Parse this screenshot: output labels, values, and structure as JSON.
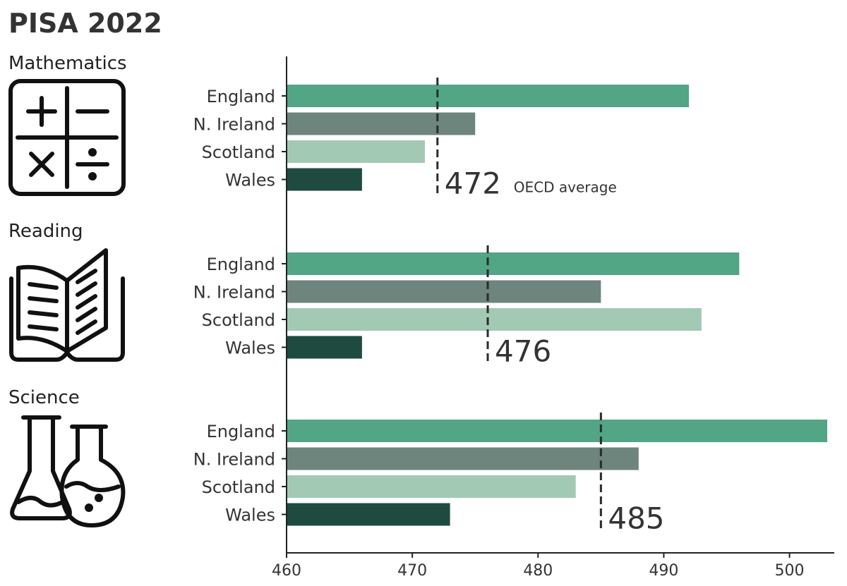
{
  "title": "PISA 2022",
  "chart_data": {
    "type": "bar",
    "orientation": "horizontal",
    "xlim": [
      460,
      503
    ],
    "xticks": [
      460,
      470,
      480,
      490,
      500
    ],
    "categories": [
      "England",
      "N. Ireland",
      "Scotland",
      "Wales"
    ],
    "colors": [
      "#52a585",
      "#6d857c",
      "#a2c9b4",
      "#1f4a40"
    ],
    "oecd_average_label": "OECD average",
    "panels": [
      {
        "subject": "Mathematics",
        "icon": "calculator-icon",
        "values": [
          492,
          475,
          471,
          466
        ],
        "oecd_average": 472
      },
      {
        "subject": "Reading",
        "icon": "open-book-icon",
        "values": [
          496,
          485,
          493,
          466
        ],
        "oecd_average": 476
      },
      {
        "subject": "Science",
        "icon": "flasks-icon",
        "values": [
          503,
          488,
          483,
          473
        ],
        "oecd_average": 485
      }
    ]
  }
}
